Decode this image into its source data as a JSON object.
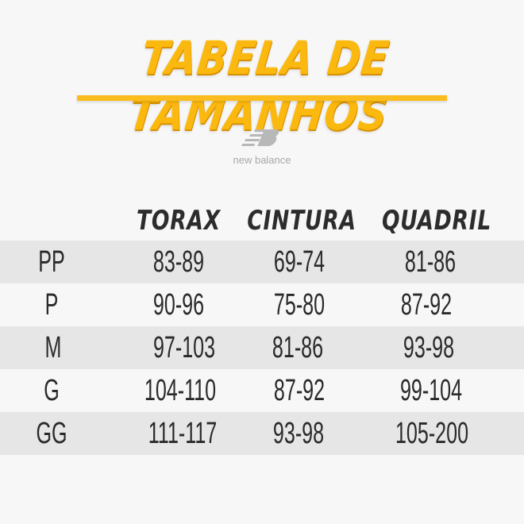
{
  "title": "TABELA DE TAMANHOS",
  "accent_color": "#fbb80f",
  "logo": {
    "brand": "new balance",
    "icon": "nb-logo-icon"
  },
  "table": {
    "headers": [
      "TORAX",
      "CINTURA",
      "QUADRIL"
    ],
    "rows": [
      {
        "size": "PP",
        "values": [
          "83-89",
          "69-74",
          "81-86"
        ]
      },
      {
        "size": "P",
        "values": [
          "90-96",
          "75-80",
          "87-92"
        ]
      },
      {
        "size": "M",
        "values": [
          "97-103",
          "81-86",
          "93-98"
        ]
      },
      {
        "size": "G",
        "values": [
          "104-110",
          "87-92",
          "99-104"
        ]
      },
      {
        "size": "GG",
        "values": [
          "111-117",
          "93-98",
          "105-200"
        ]
      }
    ]
  }
}
